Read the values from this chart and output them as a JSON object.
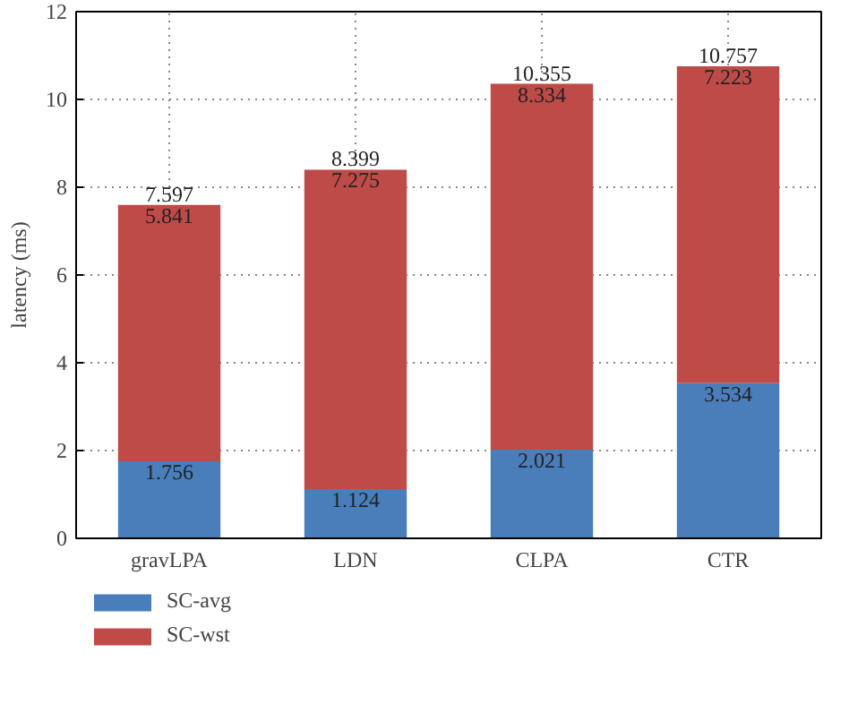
{
  "chart_data": {
    "type": "bar",
    "ylabel": "latency (ms)",
    "categories": [
      "gravLPA",
      "LDN",
      "CLPA",
      "CTR"
    ],
    "stacked": true,
    "series": [
      {
        "name": "SC-avg",
        "color": "#4a7ebb",
        "values": [
          1.756,
          1.124,
          2.021,
          3.534
        ]
      },
      {
        "name": "SC-wst",
        "color": "#be4b48",
        "values": [
          5.841,
          7.275,
          8.334,
          7.223
        ]
      }
    ],
    "data_labels": true,
    "totals": [
      "7.597",
      "8.399",
      "10.355",
      "10.757"
    ],
    "ylim": [
      0,
      12
    ],
    "yticks": [
      0,
      2,
      4,
      6,
      8,
      10,
      12
    ],
    "grid": true,
    "legend": "bottom left"
  }
}
